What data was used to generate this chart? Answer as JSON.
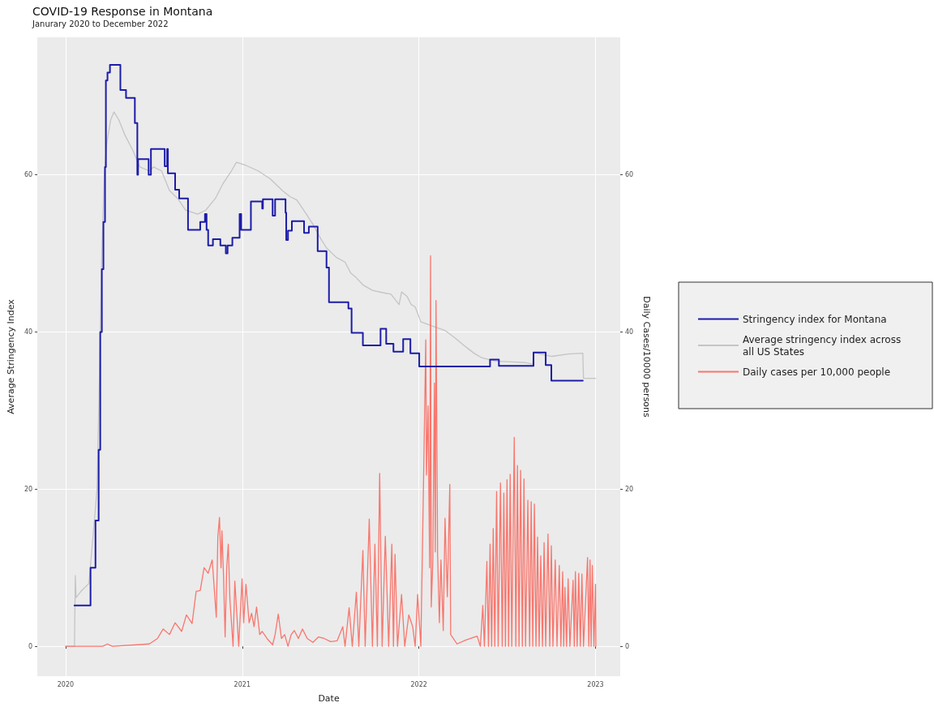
{
  "chart_data": {
    "type": "line",
    "title": "COVID-19 Response in Montana",
    "subtitle": "Janurary 2020 to December 2022",
    "xlabel": "Date",
    "ylabel": "Average Stringency Index",
    "y2label": "Daily Cases/10000 persons",
    "xlim": [
      2019.84,
      2023.14
    ],
    "xticks": [
      2020,
      2021,
      2022,
      2023
    ],
    "ylim": [
      -3.8,
      77.5
    ],
    "yticks": [
      0,
      20,
      40,
      60
    ],
    "y2lim": [
      -3.8,
      77.5
    ],
    "y2ticks": [
      0,
      20,
      40,
      60
    ],
    "grid": true,
    "legend": "right",
    "marker": "none",
    "series": [
      {
        "name": "Stringency index for Montana",
        "type": "step",
        "color": "#1c1ca8",
        "x": [
          2020.05,
          2020.141,
          2020.169,
          2020.187,
          2020.196,
          2020.205,
          2020.214,
          2020.223,
          2020.228,
          2020.237,
          2020.251,
          2020.31,
          2020.342,
          2020.392,
          2020.406,
          2020.41,
          2020.47,
          2020.483,
          2020.561,
          2020.575,
          2020.579,
          2020.62,
          2020.643,
          2020.693,
          2020.762,
          2020.789,
          2020.798,
          2020.807,
          2020.834,
          2020.876,
          2020.907,
          2020.917,
          2020.944,
          2020.985,
          2020.994,
          2021.049,
          2021.113,
          2021.117,
          2021.172,
          2021.186,
          2021.245,
          2021.249,
          2021.259,
          2021.281,
          2021.35,
          2021.377,
          2021.427,
          2021.477,
          2021.491,
          2021.601,
          2021.619,
          2021.683,
          2021.783,
          2021.815,
          2021.856,
          2021.911,
          2021.952,
          2022.002,
          2022.403,
          2022.453,
          2022.649,
          2022.718,
          2022.75,
          2022.928
        ],
        "values": [
          5.2,
          10,
          16,
          25,
          40,
          48,
          54,
          61,
          72,
          73,
          74,
          70.8,
          69.8,
          66.6,
          60,
          62,
          60,
          63.3,
          61.1,
          63.3,
          60.2,
          58.1,
          57.0,
          53.0,
          54.0,
          55,
          53,
          51.0,
          51.8,
          51.0,
          50.0,
          51.0,
          52.0,
          55.0,
          53.0,
          56.6,
          55.7,
          56.9,
          54.8,
          56.9,
          55.2,
          51.7,
          52.9,
          54.1,
          52.6,
          53.4,
          50.3,
          48.2,
          43.8,
          43.0,
          39.9,
          38.3,
          40.4,
          38.5,
          37.5,
          39.1,
          37.3,
          35.6,
          36.5,
          35.7,
          37.4,
          35.8,
          33.8,
          33.8
        ]
      },
      {
        "name": "Average stringency index across all US States",
        "type": "line",
        "color": "#c4c4c4",
        "x": [
          2020.0,
          2020.05,
          2020.055,
          2020.057,
          2020.059,
          2020.087,
          2020.132,
          2020.155,
          2020.178,
          2020.192,
          2020.205,
          2020.219,
          2020.233,
          2020.255,
          2020.274,
          2020.301,
          2020.337,
          2020.383,
          2020.42,
          2020.474,
          2020.497,
          2020.543,
          2020.588,
          2020.634,
          2020.679,
          2020.748,
          2020.793,
          2020.848,
          2020.894,
          2020.939,
          2020.967,
          2021.021,
          2021.09,
          2021.158,
          2021.227,
          2021.272,
          2021.309,
          2021.363,
          2021.4,
          2021.441,
          2021.477,
          2021.532,
          2021.582,
          2021.614,
          2021.646,
          2021.683,
          2021.737,
          2021.797,
          2021.842,
          2021.888,
          2021.902,
          2021.934,
          2021.956,
          2021.979,
          2022.011,
          2022.07,
          2022.148,
          2022.207,
          2022.266,
          2022.312,
          2022.358,
          2022.435,
          2022.526,
          2022.604,
          2022.645,
          2022.649,
          2022.686,
          2022.754,
          2022.845,
          2022.928,
          2022.932,
          2023.0
        ],
        "values": [
          0,
          0,
          9,
          9,
          6.2,
          7,
          8,
          14,
          20,
          35,
          50,
          60,
          64,
          67,
          68,
          67,
          65,
          63,
          61,
          60.5,
          61,
          60.5,
          58,
          57,
          55.5,
          55,
          55.5,
          57,
          59,
          60.5,
          61.6,
          61.2,
          60.5,
          59.5,
          58,
          57.2,
          56.8,
          55,
          53.7,
          52,
          50.7,
          49.5,
          48.9,
          47.5,
          46.9,
          46,
          45.3,
          45,
          44.8,
          43.5,
          45.1,
          44.5,
          43.5,
          43.2,
          41.3,
          40.8,
          40.2,
          39.2,
          38.1,
          37.3,
          36.7,
          36.3,
          36.2,
          36.1,
          35.9,
          37.4,
          37.2,
          36.9,
          37.2,
          37.3,
          34.1,
          34.1
        ]
      },
      {
        "name": "Daily cases per 10,000 people",
        "type": "line",
        "axis": "y2",
        "color": "#f8766d",
        "x": [
          2020.0,
          2020.05,
          2020.21,
          2020.237,
          2020.264,
          2020.474,
          2020.52,
          2020.552,
          2020.588,
          2020.62,
          2020.657,
          2020.684,
          2020.716,
          2020.739,
          2020.762,
          2020.784,
          2020.807,
          2020.83,
          2020.853,
          2020.862,
          2020.871,
          2020.88,
          2020.885,
          2020.894,
          2020.903,
          2020.912,
          2020.921,
          2020.93,
          2020.948,
          2020.958,
          2020.967,
          2020.98,
          2020.999,
          2021.008,
          2021.021,
          2021.039,
          2021.053,
          2021.067,
          2021.081,
          2021.099,
          2021.113,
          2021.14,
          2021.172,
          2021.186,
          2021.204,
          2021.222,
          2021.24,
          2021.259,
          2021.277,
          2021.295,
          2021.318,
          2021.341,
          2021.368,
          2021.4,
          2021.432,
          2021.464,
          2021.5,
          2021.537,
          2021.569,
          2021.582,
          2021.605,
          2021.623,
          2021.646,
          2021.66,
          2021.683,
          2021.696,
          2021.719,
          2021.737,
          2021.751,
          2021.765,
          2021.778,
          2021.792,
          2021.81,
          2021.829,
          2021.847,
          2021.856,
          2021.865,
          2021.879,
          2021.902,
          2021.92,
          2021.943,
          2021.965,
          2021.979,
          2021.993,
          2022.011,
          2022.025,
          2022.039,
          2022.043,
          2022.052,
          2022.061,
          2022.066,
          2022.07,
          2022.079,
          2022.088,
          2022.093,
          2022.097,
          2022.106,
          2022.116,
          2022.125,
          2022.138,
          2022.148,
          2022.161,
          2022.175,
          2022.18,
          2022.216,
          2022.266,
          2022.33,
          2022.348,
          2022.362,
          2022.371,
          2022.385,
          2022.394,
          2022.403,
          2022.412,
          2022.421,
          2022.43,
          2022.44,
          2022.449,
          2022.462,
          2022.472,
          2022.481,
          2022.49,
          2022.499,
          2022.508,
          2022.517,
          2022.526,
          2022.54,
          2022.549,
          2022.558,
          2022.567,
          2022.576,
          2022.586,
          2022.595,
          2022.604,
          2022.617,
          2022.627,
          2022.636,
          2022.645,
          2022.654,
          2022.663,
          2022.672,
          2022.681,
          2022.69,
          2022.7,
          2022.709,
          2022.718,
          2022.731,
          2022.741,
          2022.75,
          2022.759,
          2022.772,
          2022.782,
          2022.795,
          2022.804,
          2022.814,
          2022.82,
          2022.827,
          2022.836,
          2022.845,
          2022.855,
          2022.873,
          2022.88,
          2022.886,
          2022.896,
          2022.905,
          2022.914,
          2022.923,
          2022.932,
          2022.955,
          2022.962,
          2022.969,
          2022.975,
          2022.982,
          2022.991,
          2023.0,
          2023.002
        ],
        "values": [
          0,
          0,
          0,
          0.3,
          0,
          0.3,
          1,
          2.2,
          1.5,
          3,
          1.9,
          4,
          2.9,
          7,
          7.1,
          10,
          9.3,
          11,
          3.7,
          14,
          16.4,
          10,
          14.7,
          9,
          1.2,
          10,
          13,
          6,
          0,
          8.3,
          5,
          0,
          8.6,
          3,
          7.9,
          3,
          4.2,
          2.5,
          5,
          1.5,
          1.9,
          1,
          0.2,
          1.5,
          4.1,
          1,
          1.5,
          0,
          1.5,
          2,
          1,
          2.2,
          1,
          0.5,
          1.2,
          1,
          0.6,
          0.7,
          2.5,
          0,
          4.9,
          0,
          6.9,
          0,
          12.2,
          0,
          16.2,
          0,
          13,
          0,
          22,
          0,
          14,
          0,
          13,
          0,
          11.7,
          0,
          6.6,
          0,
          4,
          2.5,
          0,
          6.6,
          0,
          19,
          39,
          21.8,
          30.6,
          10,
          49.7,
          5,
          10.8,
          33.5,
          12,
          44,
          11.7,
          3,
          11,
          2,
          16.3,
          6.3,
          20.6,
          1.5,
          0.3,
          0.8,
          1.3,
          0,
          5.2,
          0,
          10.8,
          0,
          13,
          0,
          15,
          0,
          19.7,
          0,
          20.8,
          0,
          19.5,
          0,
          21.2,
          0,
          21.9,
          0,
          26.6,
          0,
          23,
          0,
          22.4,
          0,
          21.3,
          0,
          18.6,
          0,
          18.4,
          0,
          18.1,
          0,
          13.9,
          0,
          11.5,
          0,
          13.2,
          0,
          14.3,
          0,
          12.8,
          0,
          11,
          0,
          10.3,
          0,
          9.5,
          0,
          7.5,
          0,
          8.6,
          0,
          8.4,
          0,
          9.5,
          0,
          9.3,
          0,
          9.2,
          0,
          11.3,
          0,
          11,
          0,
          10.3,
          0,
          7.9,
          0
        ]
      }
    ]
  }
}
